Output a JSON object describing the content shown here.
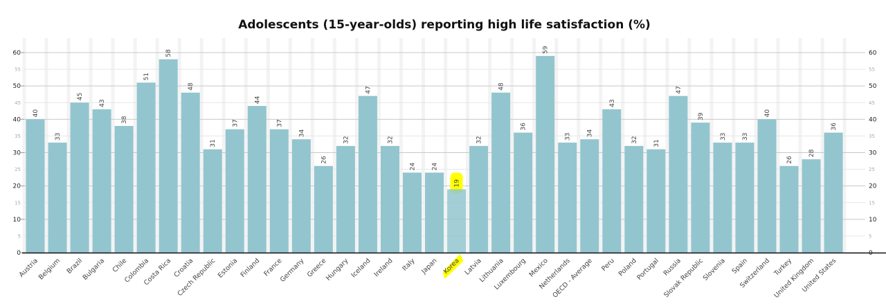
{
  "chart_data": {
    "type": "bar",
    "title": "Adolescents (15-year-olds) reporting high life satisfaction (%)",
    "xlabel": "",
    "ylabel": "",
    "ylim": [
      0,
      60
    ],
    "yticks_major": [
      0,
      10,
      20,
      30,
      40,
      50,
      60
    ],
    "yticks_minor": [
      5,
      15,
      25,
      35,
      45,
      55
    ],
    "grid": true,
    "axis_labels_both_sides": true,
    "bar_color": "#93c5cf",
    "highlight": {
      "category": "Korea",
      "color": "#ffff00"
    },
    "categories": [
      "Austria",
      "Belgium",
      "Brazil",
      "Bulgaria",
      "Chile",
      "Colombia",
      "Costa Rica",
      "Croatia",
      "Czech Republic",
      "Estonia",
      "Finland",
      "France",
      "Germany",
      "Greece",
      "Hungary",
      "Iceland",
      "Ireland",
      "Italy",
      "Japan",
      "Korea",
      "Latvia",
      "Lithuania",
      "Luxembourg",
      "Mexico",
      "Netherlands",
      "OECD - Average",
      "Peru",
      "Poland",
      "Portugal",
      "Russia",
      "Slovak Republic",
      "Slovenia",
      "Spain",
      "Switzerland",
      "Turkey",
      "United Kingdom",
      "United States"
    ],
    "values": [
      40,
      33,
      45,
      43,
      38,
      51,
      58,
      48,
      31,
      37,
      44,
      37,
      34,
      26,
      32,
      47,
      32,
      24,
      24,
      19,
      32,
      48,
      36,
      59,
      33,
      34,
      43,
      32,
      31,
      47,
      39,
      33,
      33,
      40,
      26,
      28,
      36
    ]
  }
}
